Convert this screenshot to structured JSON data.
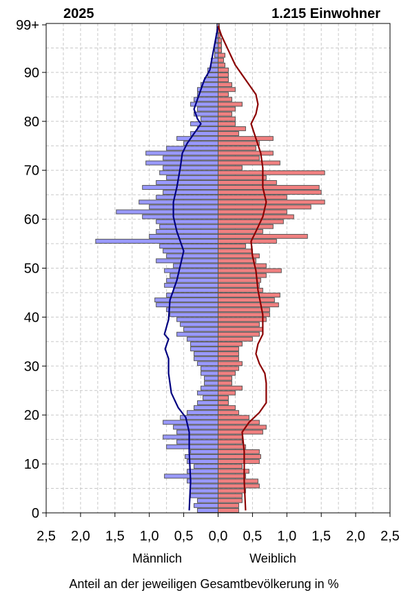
{
  "chart_data": {
    "type": "bar",
    "title_left": "2025",
    "title_right": "1.215 Einwohner",
    "xlabel": "Anteil an der jeweiligen Gesamtbevölkerung in %",
    "male_label": "Männlich",
    "female_label": "Weiblich",
    "x_tick_labels": [
      "2,5",
      "2,0",
      "1,5",
      "1,0",
      "0,5",
      "0,0",
      "0,5",
      "1,0",
      "1,5",
      "2,0",
      "2,5"
    ],
    "y_tick_labels": [
      {
        "age": 0,
        "label": "0"
      },
      {
        "age": 10,
        "label": "10"
      },
      {
        "age": 20,
        "label": "20"
      },
      {
        "age": 30,
        "label": "30"
      },
      {
        "age": 40,
        "label": "40"
      },
      {
        "age": 50,
        "label": "50"
      },
      {
        "age": 60,
        "label": "60"
      },
      {
        "age": 70,
        "label": "70"
      },
      {
        "age": 80,
        "label": "80"
      },
      {
        "age": 90,
        "label": "90"
      },
      {
        "age": 99,
        "label": "99+"
      }
    ],
    "xlim": [
      -2.5,
      2.5
    ],
    "ylim": [
      0,
      100
    ],
    "grid": true,
    "colors": {
      "male_fill": "#9999ff",
      "female_fill": "#f08080",
      "bar_edge": "#555555",
      "male_line": "#000080",
      "female_line": "#8b0000"
    },
    "ages": [
      0,
      1,
      2,
      3,
      4,
      5,
      6,
      7,
      8,
      9,
      10,
      11,
      12,
      13,
      14,
      15,
      16,
      17,
      18,
      19,
      20,
      21,
      22,
      23,
      24,
      25,
      26,
      27,
      28,
      29,
      30,
      31,
      32,
      33,
      34,
      35,
      36,
      37,
      38,
      39,
      40,
      41,
      42,
      43,
      44,
      45,
      46,
      47,
      48,
      49,
      50,
      51,
      52,
      53,
      54,
      55,
      56,
      57,
      58,
      59,
      60,
      61,
      62,
      63,
      64,
      65,
      66,
      67,
      68,
      69,
      70,
      71,
      72,
      73,
      74,
      75,
      76,
      77,
      78,
      79,
      80,
      81,
      82,
      83,
      84,
      85,
      86,
      87,
      88,
      89,
      90,
      91,
      92,
      93,
      94,
      95,
      96,
      97,
      98,
      99
    ],
    "male_values": [
      0.3,
      0.35,
      0.3,
      0.4,
      0.4,
      0.4,
      0.45,
      0.78,
      0.45,
      0.35,
      0.45,
      0.48,
      0.4,
      0.75,
      0.6,
      0.8,
      0.6,
      0.65,
      0.8,
      0.55,
      0.45,
      0.35,
      0.3,
      0.22,
      0.3,
      0.25,
      0.2,
      0.2,
      0.25,
      0.25,
      0.3,
      0.35,
      0.35,
      0.4,
      0.4,
      0.45,
      0.6,
      0.5,
      0.55,
      0.6,
      0.7,
      0.75,
      0.9,
      0.92,
      0.75,
      0.65,
      0.78,
      0.75,
      0.7,
      0.78,
      0.65,
      0.9,
      0.75,
      0.8,
      0.85,
      1.78,
      1.0,
      0.9,
      0.85,
      0.9,
      1.1,
      1.48,
      1.0,
      1.15,
      0.9,
      0.8,
      1.1,
      0.9,
      0.75,
      0.85,
      0.8,
      1.05,
      0.8,
      1.05,
      0.75,
      0.5,
      0.6,
      0.4,
      0.3,
      0.4,
      0.25,
      0.35,
      0.3,
      0.4,
      0.35,
      0.3,
      0.3,
      0.25,
      0.2,
      0.15,
      0.15,
      0.1,
      0.1,
      0.05,
      0.05,
      0.05,
      0.03,
      0.03,
      0.02,
      0.02
    ],
    "female_values": [
      0.3,
      0.3,
      0.35,
      0.35,
      0.4,
      0.6,
      0.58,
      0.4,
      0.45,
      0.35,
      0.6,
      0.62,
      0.6,
      0.4,
      0.35,
      0.35,
      0.65,
      0.7,
      0.6,
      0.45,
      0.3,
      0.25,
      0.15,
      0.15,
      0.25,
      0.35,
      0.2,
      0.2,
      0.25,
      0.3,
      0.35,
      0.3,
      0.3,
      0.3,
      0.35,
      0.5,
      0.6,
      0.65,
      0.6,
      0.7,
      0.75,
      0.75,
      0.88,
      0.82,
      0.9,
      0.65,
      0.6,
      0.62,
      0.7,
      0.92,
      0.7,
      0.55,
      0.6,
      0.5,
      0.4,
      0.85,
      1.3,
      0.65,
      0.8,
      0.95,
      1.1,
      1.0,
      1.35,
      1.55,
      1.0,
      1.5,
      1.47,
      0.85,
      0.7,
      1.55,
      0.35,
      0.9,
      0.6,
      0.8,
      0.55,
      0.6,
      0.8,
      0.3,
      0.4,
      0.25,
      0.25,
      0.2,
      0.25,
      0.35,
      0.2,
      0.15,
      0.25,
      0.2,
      0.15,
      0.15,
      0.15,
      0.1,
      0.08,
      0.1,
      0.05,
      0.05,
      0.05,
      0.03,
      0.02,
      0.02
    ],
    "male_reference_line": [
      {
        "age": 0,
        "value": 0.42
      },
      {
        "age": 6,
        "value": 0.4
      },
      {
        "age": 12,
        "value": 0.42
      },
      {
        "age": 16,
        "value": 0.42
      },
      {
        "age": 19,
        "value": 0.47
      },
      {
        "age": 21,
        "value": 0.58
      },
      {
        "age": 24,
        "value": 0.68
      },
      {
        "age": 28,
        "value": 0.72
      },
      {
        "age": 31,
        "value": 0.72
      },
      {
        "age": 33,
        "value": 0.77
      },
      {
        "age": 35,
        "value": 0.72
      },
      {
        "age": 36,
        "value": 0.78
      },
      {
        "age": 39,
        "value": 0.72
      },
      {
        "age": 43,
        "value": 0.7
      },
      {
        "age": 47,
        "value": 0.6
      },
      {
        "age": 50,
        "value": 0.55
      },
      {
        "age": 53,
        "value": 0.5
      },
      {
        "age": 55,
        "value": 0.55
      },
      {
        "age": 57,
        "value": 0.6
      },
      {
        "age": 60,
        "value": 0.65
      },
      {
        "age": 63,
        "value": 0.65
      },
      {
        "age": 66,
        "value": 0.6
      },
      {
        "age": 70,
        "value": 0.55
      },
      {
        "age": 73,
        "value": 0.52
      },
      {
        "age": 75,
        "value": 0.45
      },
      {
        "age": 77,
        "value": 0.35
      },
      {
        "age": 79,
        "value": 0.25
      },
      {
        "age": 80,
        "value": 0.3
      },
      {
        "age": 82,
        "value": 0.35
      },
      {
        "age": 84,
        "value": 0.3
      },
      {
        "age": 86,
        "value": 0.25
      },
      {
        "age": 88,
        "value": 0.2
      },
      {
        "age": 90,
        "value": 0.12
      },
      {
        "age": 93,
        "value": 0.08
      },
      {
        "age": 96,
        "value": 0.04
      },
      {
        "age": 99,
        "value": 0.0
      }
    ],
    "female_reference_line": [
      {
        "age": 0,
        "value": 0.4
      },
      {
        "age": 6,
        "value": 0.38
      },
      {
        "age": 12,
        "value": 0.38
      },
      {
        "age": 16,
        "value": 0.35
      },
      {
        "age": 18,
        "value": 0.45
      },
      {
        "age": 20,
        "value": 0.6
      },
      {
        "age": 22,
        "value": 0.7
      },
      {
        "age": 26,
        "value": 0.7
      },
      {
        "age": 28,
        "value": 0.68
      },
      {
        "age": 30,
        "value": 0.6
      },
      {
        "age": 32,
        "value": 0.55
      },
      {
        "age": 34,
        "value": 0.58
      },
      {
        "age": 36,
        "value": 0.65
      },
      {
        "age": 40,
        "value": 0.65
      },
      {
        "age": 45,
        "value": 0.58
      },
      {
        "age": 49,
        "value": 0.55
      },
      {
        "age": 52,
        "value": 0.5
      },
      {
        "age": 55,
        "value": 0.48
      },
      {
        "age": 57,
        "value": 0.55
      },
      {
        "age": 60,
        "value": 0.65
      },
      {
        "age": 63,
        "value": 0.7
      },
      {
        "age": 66,
        "value": 0.65
      },
      {
        "age": 70,
        "value": 0.65
      },
      {
        "age": 73,
        "value": 0.62
      },
      {
        "age": 76,
        "value": 0.55
      },
      {
        "age": 79,
        "value": 0.48
      },
      {
        "age": 81,
        "value": 0.55
      },
      {
        "age": 83,
        "value": 0.58
      },
      {
        "age": 85,
        "value": 0.55
      },
      {
        "age": 87,
        "value": 0.45
      },
      {
        "age": 89,
        "value": 0.35
      },
      {
        "age": 91,
        "value": 0.25
      },
      {
        "age": 94,
        "value": 0.15
      },
      {
        "age": 97,
        "value": 0.05
      },
      {
        "age": 99,
        "value": 0.0
      }
    ]
  }
}
